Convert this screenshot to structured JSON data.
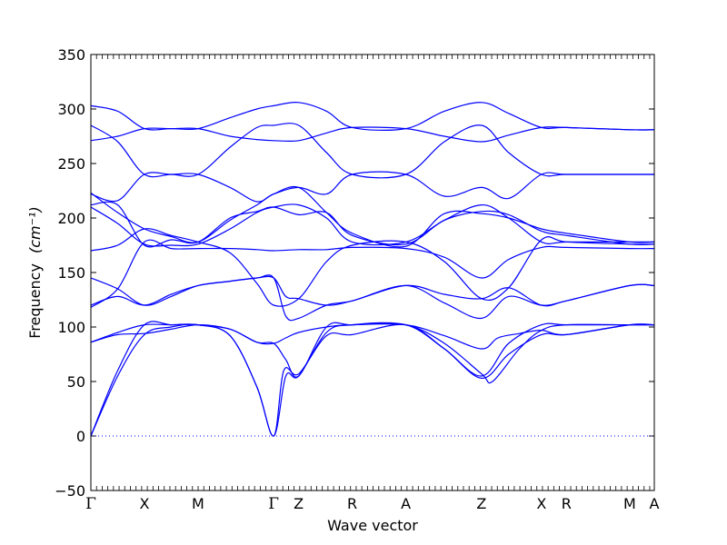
{
  "chart_data": {
    "type": "line",
    "title": "",
    "xlabel": "Wave vector",
    "ylabel": "Frequency",
    "ylabel_unit": "(cm⁻¹)",
    "ylim": [
      -50,
      350
    ],
    "yticks": [
      -50,
      0,
      50,
      100,
      150,
      200,
      250,
      300,
      350
    ],
    "grid": false,
    "x_symmetry_points": [
      {
        "label": "Γ",
        "x": 0.0
      },
      {
        "label": "X",
        "x": 0.5
      },
      {
        "label": "M",
        "x": 1.0
      },
      {
        "label": "Γ",
        "x": 1.707
      },
      {
        "label": "Z",
        "x": 1.94
      },
      {
        "label": "R",
        "x": 2.44
      },
      {
        "label": "A",
        "x": 2.94
      },
      {
        "label": "Z",
        "x": 3.647
      },
      {
        "label": "X",
        "x": 4.207
      },
      {
        "label": "R",
        "x": 4.44
      },
      {
        "label": "M",
        "x": 5.03
      },
      {
        "label": "A",
        "x": 5.26
      }
    ],
    "xlim": [
      0,
      5.26
    ],
    "colors": {
      "bands": "#0000ff",
      "axes": "#000000"
    },
    "series": [
      {
        "values": [
          [
            0,
            0
          ],
          [
            0.25,
            60
          ],
          [
            0.5,
            102
          ],
          [
            0.75,
            102
          ],
          [
            1.0,
            102
          ],
          [
            1.3,
            92
          ],
          [
            1.55,
            45
          ],
          [
            1.707,
            0
          ],
          [
            1.82,
            55
          ],
          [
            1.94,
            55
          ],
          [
            2.2,
            95
          ],
          [
            2.44,
            102
          ],
          [
            2.94,
            102
          ],
          [
            3.3,
            80
          ],
          [
            3.647,
            55
          ],
          [
            3.9,
            85
          ],
          [
            4.207,
            102
          ],
          [
            4.44,
            102
          ],
          [
            5.03,
            102
          ],
          [
            5.26,
            102
          ]
        ]
      },
      {
        "values": [
          [
            0,
            0
          ],
          [
            0.25,
            55
          ],
          [
            0.5,
            93
          ],
          [
            0.75,
            100
          ],
          [
            1.0,
            102
          ],
          [
            1.3,
            92
          ],
          [
            1.55,
            45
          ],
          [
            1.707,
            0
          ],
          [
            1.8,
            60
          ],
          [
            1.94,
            57
          ],
          [
            2.2,
            92
          ],
          [
            2.44,
            93
          ],
          [
            2.94,
            102
          ],
          [
            3.3,
            80
          ],
          [
            3.647,
            53
          ],
          [
            3.9,
            75
          ],
          [
            4.207,
            93
          ],
          [
            4.44,
            93
          ],
          [
            5.03,
            102
          ],
          [
            5.26,
            102
          ]
        ]
      },
      {
        "values": [
          [
            0,
            86
          ],
          [
            0.25,
            95
          ],
          [
            0.5,
            102
          ],
          [
            0.75,
            102
          ],
          [
            1.0,
            102
          ],
          [
            1.3,
            98
          ],
          [
            1.55,
            86
          ],
          [
            1.707,
            85
          ],
          [
            1.82,
            70
          ],
          [
            1.94,
            55
          ],
          [
            2.2,
            100
          ],
          [
            2.44,
            102
          ],
          [
            2.94,
            102
          ],
          [
            3.3,
            85
          ],
          [
            3.647,
            57
          ],
          [
            3.75,
            50
          ],
          [
            4.0,
            80
          ],
          [
            4.207,
            97
          ],
          [
            4.44,
            102
          ],
          [
            5.03,
            102
          ],
          [
            5.26,
            102
          ]
        ]
      },
      {
        "values": [
          [
            0,
            86
          ],
          [
            0.25,
            93
          ],
          [
            0.5,
            94
          ],
          [
            0.75,
            98
          ],
          [
            1.0,
            102
          ],
          [
            1.3,
            98
          ],
          [
            1.55,
            86
          ],
          [
            1.707,
            85
          ],
          [
            1.82,
            90
          ],
          [
            1.94,
            95
          ],
          [
            2.2,
            100
          ],
          [
            2.44,
            102
          ],
          [
            2.94,
            102
          ],
          [
            3.3,
            92
          ],
          [
            3.647,
            80
          ],
          [
            3.8,
            90
          ],
          [
            4.0,
            94
          ],
          [
            4.207,
            97
          ],
          [
            4.44,
            93
          ],
          [
            5.03,
            102
          ],
          [
            5.26,
            102
          ]
        ]
      },
      {
        "values": [
          [
            0,
            118
          ],
          [
            0.25,
            135
          ],
          [
            0.5,
            178
          ],
          [
            0.75,
            172
          ],
          [
            1.0,
            172
          ],
          [
            1.3,
            172
          ],
          [
            1.55,
            171
          ],
          [
            1.707,
            170
          ],
          [
            1.94,
            171
          ],
          [
            2.2,
            171
          ],
          [
            2.44,
            173
          ],
          [
            2.94,
            172
          ],
          [
            3.3,
            164
          ],
          [
            3.647,
            145
          ],
          [
            3.9,
            162
          ],
          [
            4.207,
            173
          ],
          [
            4.44,
            173
          ],
          [
            5.03,
            172
          ],
          [
            5.26,
            172
          ]
        ]
      },
      {
        "values": [
          [
            0,
            145
          ],
          [
            0.25,
            135
          ],
          [
            0.5,
            120
          ],
          [
            0.75,
            128
          ],
          [
            1.0,
            138
          ],
          [
            1.3,
            142
          ],
          [
            1.55,
            145
          ],
          [
            1.707,
            145
          ],
          [
            1.82,
            128
          ],
          [
            1.94,
            126
          ],
          [
            2.2,
            120
          ],
          [
            2.44,
            124
          ],
          [
            2.94,
            138
          ],
          [
            3.3,
            130
          ],
          [
            3.647,
            126
          ],
          [
            3.9,
            136
          ],
          [
            4.207,
            120
          ],
          [
            4.44,
            124
          ],
          [
            5.03,
            138
          ],
          [
            5.26,
            138
          ]
        ]
      },
      {
        "values": [
          [
            0,
            120
          ],
          [
            0.25,
            128
          ],
          [
            0.5,
            120
          ],
          [
            0.75,
            130
          ],
          [
            1.0,
            138
          ],
          [
            1.3,
            142
          ],
          [
            1.55,
            145
          ],
          [
            1.707,
            145
          ],
          [
            1.82,
            110
          ],
          [
            1.94,
            108
          ],
          [
            2.2,
            120
          ],
          [
            2.44,
            124
          ],
          [
            2.94,
            138
          ],
          [
            3.3,
            122
          ],
          [
            3.647,
            108
          ],
          [
            3.9,
            128
          ],
          [
            4.207,
            120
          ],
          [
            4.44,
            124
          ],
          [
            5.03,
            138
          ],
          [
            5.26,
            138
          ]
        ]
      },
      {
        "values": [
          [
            0,
            170
          ],
          [
            0.25,
            175
          ],
          [
            0.5,
            190
          ],
          [
            0.75,
            184
          ],
          [
            1.0,
            178
          ],
          [
            1.3,
            168
          ],
          [
            1.55,
            140
          ],
          [
            1.707,
            120
          ],
          [
            1.94,
            126
          ],
          [
            2.2,
            160
          ],
          [
            2.44,
            175
          ],
          [
            2.94,
            178
          ],
          [
            3.3,
            160
          ],
          [
            3.647,
            126
          ],
          [
            3.9,
            136
          ],
          [
            4.207,
            180
          ],
          [
            4.44,
            178
          ],
          [
            5.03,
            176
          ],
          [
            5.26,
            176
          ]
        ]
      },
      {
        "values": [
          [
            0,
            210
          ],
          [
            0.25,
            195
          ],
          [
            0.5,
            176
          ],
          [
            0.75,
            175
          ],
          [
            1.0,
            176
          ],
          [
            1.3,
            190
          ],
          [
            1.55,
            205
          ],
          [
            1.707,
            210
          ],
          [
            1.94,
            212
          ],
          [
            2.2,
            200
          ],
          [
            2.44,
            178
          ],
          [
            2.94,
            178
          ],
          [
            3.3,
            198
          ],
          [
            3.647,
            212
          ],
          [
            3.9,
            200
          ],
          [
            4.207,
            178
          ],
          [
            4.44,
            178
          ],
          [
            5.03,
            178
          ],
          [
            5.26,
            178
          ]
        ]
      },
      {
        "values": [
          [
            0,
            223
          ],
          [
            0.25,
            205
          ],
          [
            0.5,
            190
          ],
          [
            0.75,
            183
          ],
          [
            1.0,
            178
          ],
          [
            1.3,
            198
          ],
          [
            1.55,
            212
          ],
          [
            1.707,
            222
          ],
          [
            1.94,
            228
          ],
          [
            2.2,
            205
          ],
          [
            2.44,
            186
          ],
          [
            2.94,
            174
          ],
          [
            3.3,
            204
          ],
          [
            3.647,
            204
          ],
          [
            3.9,
            200
          ],
          [
            4.207,
            190
          ],
          [
            4.44,
            186
          ],
          [
            5.03,
            178
          ],
          [
            5.26,
            178
          ]
        ]
      },
      {
        "values": [
          [
            0,
            212
          ],
          [
            0.25,
            212
          ],
          [
            0.5,
            175
          ],
          [
            0.75,
            180
          ],
          [
            1.0,
            178
          ],
          [
            1.3,
            200
          ],
          [
            1.55,
            206
          ],
          [
            1.707,
            210
          ],
          [
            1.94,
            203
          ],
          [
            2.2,
            205
          ],
          [
            2.44,
            184
          ],
          [
            2.94,
            176
          ],
          [
            3.3,
            198
          ],
          [
            3.647,
            206
          ],
          [
            3.9,
            203
          ],
          [
            4.207,
            188
          ],
          [
            4.44,
            184
          ],
          [
            5.03,
            176
          ],
          [
            5.26,
            176
          ]
        ]
      },
      {
        "values": [
          [
            0,
            222
          ],
          [
            0.25,
            216
          ],
          [
            0.5,
            240
          ],
          [
            0.75,
            240
          ],
          [
            1.0,
            240
          ],
          [
            1.3,
            265
          ],
          [
            1.55,
            283
          ],
          [
            1.707,
            285
          ],
          [
            1.94,
            285
          ],
          [
            2.2,
            260
          ],
          [
            2.44,
            240
          ],
          [
            2.94,
            240
          ],
          [
            3.3,
            270
          ],
          [
            3.647,
            285
          ],
          [
            3.9,
            260
          ],
          [
            4.207,
            240
          ],
          [
            4.44,
            240
          ],
          [
            5.03,
            240
          ],
          [
            5.26,
            240
          ]
        ]
      },
      {
        "values": [
          [
            0,
            285
          ],
          [
            0.25,
            270
          ],
          [
            0.5,
            240
          ],
          [
            0.75,
            240
          ],
          [
            1.0,
            240
          ],
          [
            1.3,
            228
          ],
          [
            1.55,
            215
          ],
          [
            1.707,
            222
          ],
          [
            1.94,
            228
          ],
          [
            2.2,
            222
          ],
          [
            2.44,
            240
          ],
          [
            2.94,
            240
          ],
          [
            3.3,
            220
          ],
          [
            3.647,
            228
          ],
          [
            3.9,
            218
          ],
          [
            4.207,
            240
          ],
          [
            4.44,
            240
          ],
          [
            5.03,
            240
          ],
          [
            5.26,
            240
          ]
        ]
      },
      {
        "values": [
          [
            0,
            303
          ],
          [
            0.25,
            298
          ],
          [
            0.5,
            282
          ],
          [
            0.75,
            282
          ],
          [
            1.0,
            282
          ],
          [
            1.3,
            292
          ],
          [
            1.55,
            300
          ],
          [
            1.707,
            303
          ],
          [
            1.94,
            306
          ],
          [
            2.2,
            298
          ],
          [
            2.44,
            283
          ],
          [
            2.94,
            282
          ],
          [
            3.3,
            298
          ],
          [
            3.647,
            306
          ],
          [
            3.9,
            296
          ],
          [
            4.207,
            283
          ],
          [
            4.44,
            283
          ],
          [
            5.03,
            281
          ],
          [
            5.26,
            281
          ]
        ]
      },
      {
        "values": [
          [
            0,
            271
          ],
          [
            0.25,
            275
          ],
          [
            0.5,
            282
          ],
          [
            0.75,
            282
          ],
          [
            1.0,
            282
          ],
          [
            1.3,
            275
          ],
          [
            1.55,
            272
          ],
          [
            1.707,
            271
          ],
          [
            1.94,
            271
          ],
          [
            2.2,
            278
          ],
          [
            2.44,
            283
          ],
          [
            2.94,
            282
          ],
          [
            3.3,
            275
          ],
          [
            3.647,
            270
          ],
          [
            3.9,
            276
          ],
          [
            4.207,
            283
          ],
          [
            4.44,
            283
          ],
          [
            5.03,
            281
          ],
          [
            5.26,
            281
          ]
        ]
      }
    ]
  }
}
